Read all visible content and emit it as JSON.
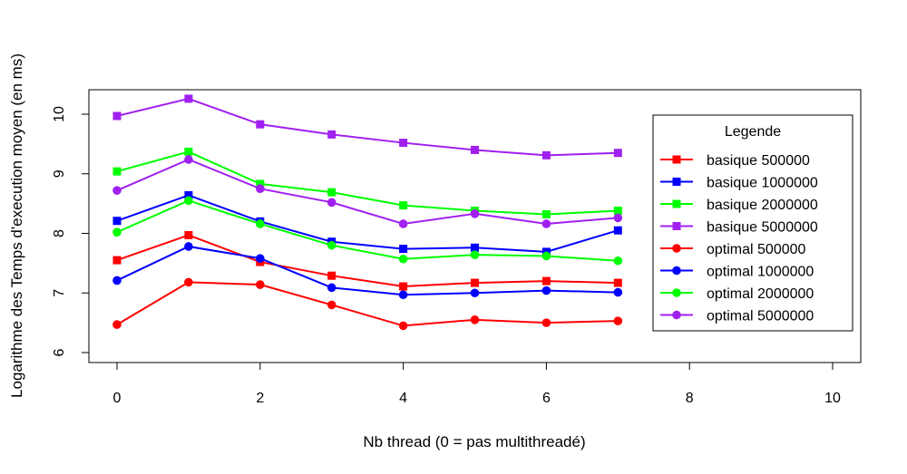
{
  "chart_data": {
    "type": "line",
    "title": "",
    "xlabel": "Nb thread (0 = pas multithreadé)",
    "ylabel": "Logarithme des Temps d'execution moyen (en ms)",
    "xlim": [
      0,
      10
    ],
    "ylim": [
      6,
      10
    ],
    "xticks": [
      0,
      2,
      4,
      6,
      8,
      10
    ],
    "yticks": [
      6,
      7,
      8,
      9,
      10
    ],
    "grid": false,
    "legend": {
      "title": "Legende",
      "position": "top-right"
    },
    "x": [
      0,
      1,
      2,
      3,
      4,
      5,
      6,
      7
    ],
    "series": [
      {
        "name": "basique 500000",
        "color": "#ff0000",
        "marker": "square",
        "values": [
          7.55,
          7.97,
          7.52,
          7.29,
          7.11,
          7.17,
          7.2,
          7.17
        ]
      },
      {
        "name": "basique 1000000",
        "color": "#0000ff",
        "marker": "square",
        "values": [
          8.21,
          8.64,
          8.2,
          7.86,
          7.74,
          7.76,
          7.69,
          8.05
        ]
      },
      {
        "name": "basique 2000000",
        "color": "#00ff00",
        "marker": "square",
        "values": [
          9.04,
          9.37,
          8.83,
          8.69,
          8.47,
          8.38,
          8.32,
          8.38
        ]
      },
      {
        "name": "basique 5000000",
        "color": "#a020f0",
        "marker": "square",
        "values": [
          9.97,
          10.26,
          9.83,
          9.66,
          9.52,
          9.4,
          9.31,
          9.35
        ]
      },
      {
        "name": "optimal 500000",
        "color": "#ff0000",
        "marker": "circle",
        "values": [
          6.47,
          7.18,
          7.14,
          6.8,
          6.45,
          6.55,
          6.5,
          6.53
        ]
      },
      {
        "name": "optimal 1000000",
        "color": "#0000ff",
        "marker": "circle",
        "values": [
          7.21,
          7.78,
          7.58,
          7.09,
          6.97,
          7.0,
          7.04,
          7.01
        ]
      },
      {
        "name": "optimal 2000000",
        "color": "#00ff00",
        "marker": "circle",
        "values": [
          8.02,
          8.55,
          8.16,
          7.8,
          7.57,
          7.64,
          7.62,
          7.54
        ]
      },
      {
        "name": "optimal 5000000",
        "color": "#a020f0",
        "marker": "circle",
        "values": [
          8.72,
          9.24,
          8.75,
          8.52,
          8.16,
          8.33,
          8.16,
          8.26
        ]
      }
    ]
  }
}
